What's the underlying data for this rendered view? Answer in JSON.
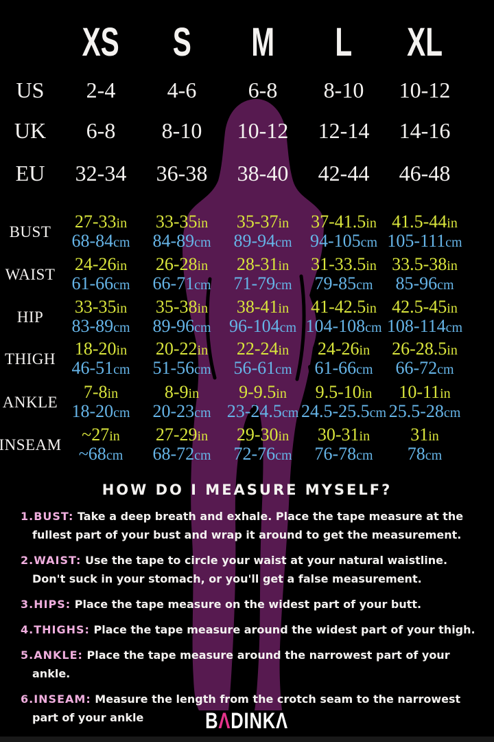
{
  "colors": {
    "background": "#000000",
    "text_white": "#f4f2f0",
    "inches_yellow": "#d9e53c",
    "cm_blue": "#66b5e8",
    "label_pink": "#f0aede",
    "logo_pink": "#e6338c",
    "silhouette_purple": "#571a50"
  },
  "chart_data": {
    "type": "table",
    "size_headers": [
      "XS",
      "S",
      "M",
      "L",
      "XL"
    ],
    "region_rows": [
      {
        "label": "US",
        "values": [
          "2-4",
          "4-6",
          "6-8",
          "8-10",
          "10-12"
        ]
      },
      {
        "label": "UK",
        "values": [
          "6-8",
          "8-10",
          "10-12",
          "12-14",
          "14-16"
        ]
      },
      {
        "label": "EU",
        "values": [
          "32-34",
          "36-38",
          "38-40",
          "42-44",
          "46-48"
        ]
      }
    ],
    "measurement_rows": [
      {
        "label": "BUST",
        "inches": [
          "27-33",
          "33-35",
          "35-37",
          "37-41.5",
          "41.5-44"
        ],
        "cm": [
          "68-84",
          "84-89",
          "89-94",
          "94-105",
          "105-111"
        ]
      },
      {
        "label": "WAIST",
        "inches": [
          "24-26",
          "26-28",
          "28-31",
          "31-33.5",
          "33.5-38"
        ],
        "cm": [
          "61-66",
          "66-71",
          "71-79",
          "79-85",
          "85-96"
        ]
      },
      {
        "label": "HIP",
        "inches": [
          "33-35",
          "35-38",
          "38-41",
          "41-42.5",
          "42.5-45"
        ],
        "cm": [
          "83-89",
          "89-96",
          "96-104",
          "104-108",
          "108-114"
        ]
      },
      {
        "label": "THIGH",
        "inches": [
          "18-20",
          "20-22",
          "22-24",
          "24-26",
          "26-28.5"
        ],
        "cm": [
          "46-51",
          "51-56",
          "56-61",
          "61-66",
          "66-72"
        ]
      },
      {
        "label": "ANKLE",
        "inches": [
          "7-8",
          "8-9",
          "9-9.5",
          "9.5-10",
          "10-11"
        ],
        "cm": [
          "18-20",
          "20-23",
          "23-24.5",
          "24.5-25.5",
          "25.5-28"
        ]
      },
      {
        "label": "INSEAM",
        "inches": [
          "~27",
          "27-29",
          "29-30",
          "30-31",
          "31"
        ],
        "cm": [
          "~68",
          "68-72",
          "72-76",
          "76-78",
          "78"
        ]
      }
    ],
    "units": {
      "inches": "in",
      "cm": "cm"
    }
  },
  "how_to": {
    "heading": "HOW DO I MEASURE MYSELF?",
    "items": [
      {
        "label": "1.BUST:",
        "text": "Take a deep breath and exhale. Place the tape measure at the fullest part of your bust and wrap it around to get the measurement."
      },
      {
        "label": "2.WAIST:",
        "text": "Use the tape to circle your waist at your natural waistline. Don't suck in your stomach, or you'll get a false measurement."
      },
      {
        "label": "3.HIPS:",
        "text": "Place the tape measure on the widest part of your butt."
      },
      {
        "label": "4.THIGHS:",
        "text": "Place the tape measure around the widest part of your thigh."
      },
      {
        "label": "5.ANKLE:",
        "text": "Place the tape measure around the narrowest part of your ankle."
      },
      {
        "label": "6.INSEAM:",
        "text": "Measure the length from the crotch seam to the narrowest part of your ankle"
      }
    ]
  },
  "logo": {
    "prefix": "B",
    "accent": "Λ",
    "rest": "DINKΛ"
  }
}
